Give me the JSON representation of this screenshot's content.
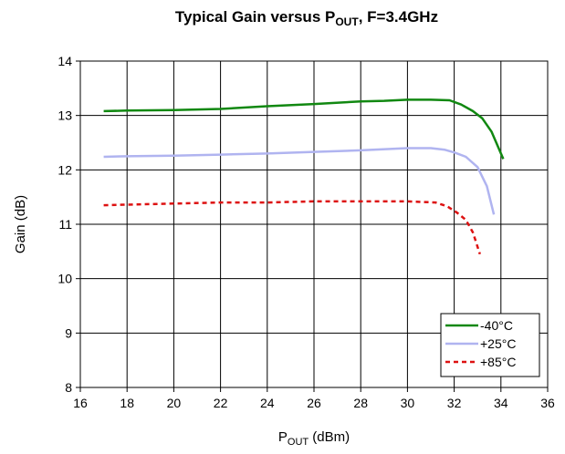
{
  "chart_data": {
    "type": "line",
    "title": {
      "prefix": "Typical Gain versus P",
      "subscript": "OUT",
      "suffix": ", F=3.4GHz"
    },
    "xlabel": {
      "prefix": "P",
      "subscript": "OUT",
      "suffix": " (dBm)"
    },
    "ylabel": "Gain (dB)",
    "xlim": [
      16,
      36
    ],
    "ylim": [
      8,
      14
    ],
    "xticks": [
      "16",
      "18",
      "20",
      "22",
      "24",
      "26",
      "28",
      "30",
      "32",
      "34",
      "36"
    ],
    "yticks": [
      "8",
      "9",
      "10",
      "11",
      "12",
      "13",
      "14"
    ],
    "grid": true,
    "legend_position": "bottom-right",
    "series": [
      {
        "name": "-40°C",
        "color": "#118811",
        "style": "solid",
        "points": [
          [
            17,
            13.08
          ],
          [
            18,
            13.09
          ],
          [
            20,
            13.1
          ],
          [
            22,
            13.12
          ],
          [
            24,
            13.17
          ],
          [
            26,
            13.21
          ],
          [
            28,
            13.26
          ],
          [
            29,
            13.27
          ],
          [
            30,
            13.29
          ],
          [
            31,
            13.29
          ],
          [
            31.8,
            13.28
          ],
          [
            32.3,
            13.2
          ],
          [
            32.8,
            13.08
          ],
          [
            33.2,
            12.95
          ],
          [
            33.6,
            12.7
          ],
          [
            34.1,
            12.2
          ]
        ]
      },
      {
        "name": "+25°C",
        "color": "#b0b4f0",
        "style": "solid",
        "points": [
          [
            17,
            12.24
          ],
          [
            18,
            12.25
          ],
          [
            20,
            12.26
          ],
          [
            22,
            12.28
          ],
          [
            24,
            12.3
          ],
          [
            26,
            12.33
          ],
          [
            28,
            12.36
          ],
          [
            30,
            12.4
          ],
          [
            31,
            12.4
          ],
          [
            31.6,
            12.37
          ],
          [
            32,
            12.32
          ],
          [
            32.5,
            12.24
          ],
          [
            33,
            12.05
          ],
          [
            33.4,
            11.7
          ],
          [
            33.7,
            11.18
          ]
        ]
      },
      {
        "name": "+85°C",
        "color": "#dd1111",
        "style": "dashed",
        "points": [
          [
            17,
            11.35
          ],
          [
            18,
            11.36
          ],
          [
            20,
            11.38
          ],
          [
            22,
            11.4
          ],
          [
            24,
            11.4
          ],
          [
            26,
            11.42
          ],
          [
            28,
            11.42
          ],
          [
            30,
            11.42
          ],
          [
            31.2,
            11.4
          ],
          [
            31.7,
            11.33
          ],
          [
            32.1,
            11.22
          ],
          [
            32.5,
            11.08
          ],
          [
            32.8,
            10.85
          ],
          [
            33.1,
            10.45
          ]
        ]
      }
    ]
  }
}
